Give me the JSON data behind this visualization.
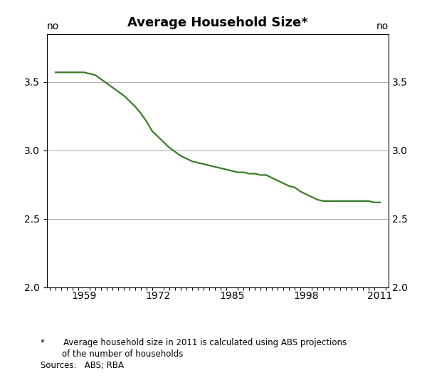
{
  "title": "Average Household Size*",
  "ylabel_left": "no",
  "ylabel_right": "no",
  "yticks": [
    2.0,
    2.5,
    3.0,
    3.5
  ],
  "ylim": [
    2.0,
    3.85
  ],
  "xtick_labels": [
    "1959",
    "1972",
    "1985",
    "1998",
    "2011"
  ],
  "xtick_positions": [
    1959,
    1972,
    1985,
    1998,
    2011
  ],
  "xlim": [
    1952.5,
    2012.5
  ],
  "line_color": "#3a7d29",
  "line_width": 1.6,
  "footnote1": "*       Average household size in 2011 is calculated using ABS projections",
  "footnote2": "        of the number of households",
  "footnote3": "Sources:   ABS; RBA",
  "data_x": [
    1954,
    1955,
    1956,
    1957,
    1958,
    1959,
    1960,
    1961,
    1962,
    1963,
    1964,
    1965,
    1966,
    1967,
    1968,
    1969,
    1970,
    1971,
    1972,
    1973,
    1974,
    1975,
    1976,
    1977,
    1978,
    1979,
    1980,
    1981,
    1982,
    1983,
    1984,
    1985,
    1986,
    1987,
    1988,
    1989,
    1990,
    1991,
    1992,
    1993,
    1994,
    1995,
    1996,
    1997,
    1998,
    1999,
    2000,
    2001,
    2002,
    2003,
    2004,
    2005,
    2006,
    2007,
    2008,
    2009,
    2010,
    2011
  ],
  "data_y": [
    3.57,
    3.57,
    3.57,
    3.57,
    3.57,
    3.57,
    3.56,
    3.55,
    3.52,
    3.49,
    3.46,
    3.43,
    3.4,
    3.36,
    3.32,
    3.27,
    3.21,
    3.14,
    3.1,
    3.06,
    3.02,
    2.99,
    2.96,
    2.94,
    2.92,
    2.91,
    2.9,
    2.89,
    2.88,
    2.87,
    2.86,
    2.85,
    2.84,
    2.84,
    2.83,
    2.83,
    2.82,
    2.82,
    2.8,
    2.78,
    2.76,
    2.74,
    2.73,
    2.7,
    2.68,
    2.66,
    2.64,
    2.63,
    2.63,
    2.63,
    2.63,
    2.63,
    2.63,
    2.63,
    2.63,
    2.63,
    2.62,
    2.62
  ]
}
